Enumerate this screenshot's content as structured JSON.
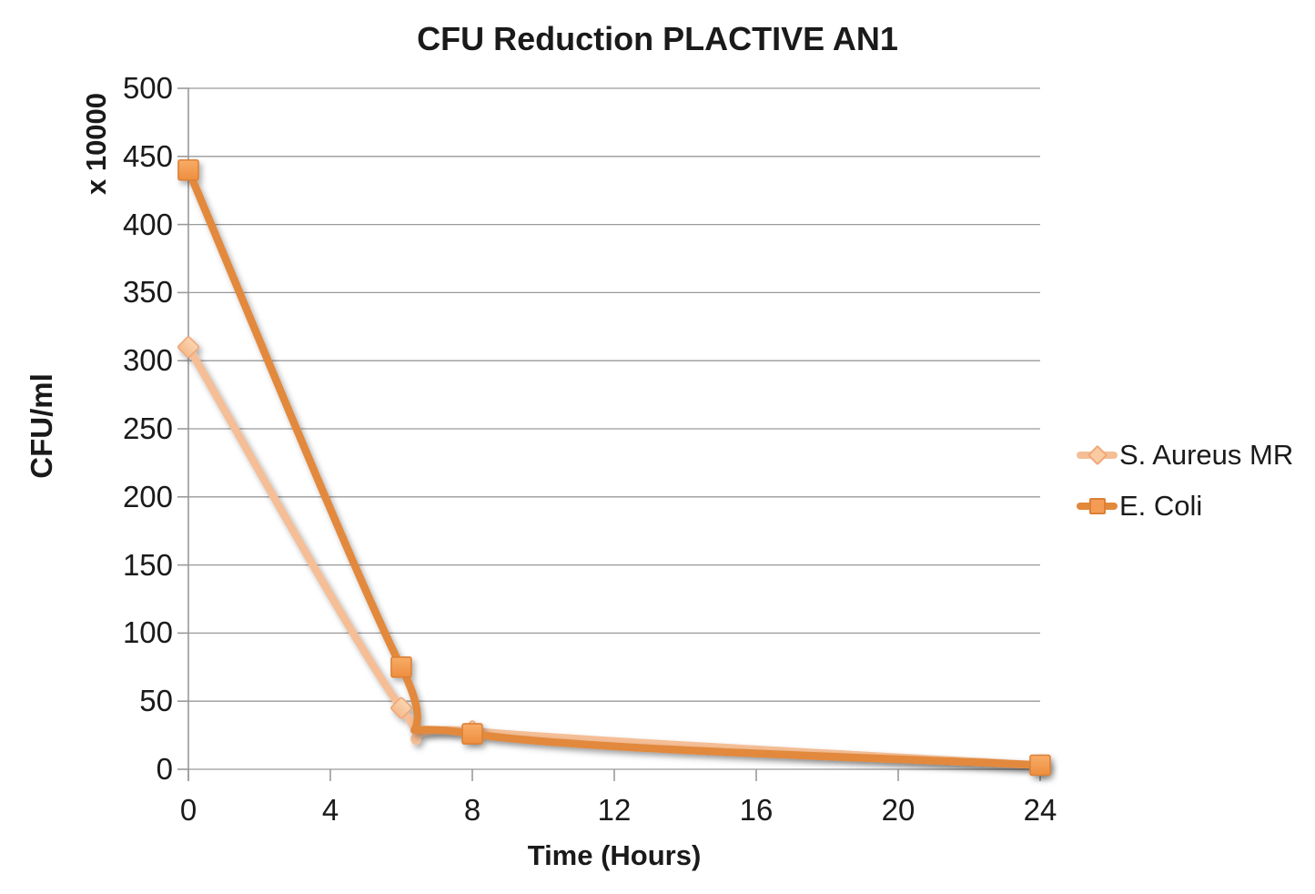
{
  "title": "CFU Reduction PLACTIVE AN1",
  "chart_data": {
    "type": "line",
    "smoothed": true,
    "title": "CFU Reduction PLACTIVE AN1",
    "xlabel": "Time (Hours)",
    "ylabel": "CFU/ml",
    "y_multiplier_label": "x 10000",
    "x": [
      0,
      6,
      8,
      24
    ],
    "series": [
      {
        "name": "S. Aureus MR",
        "values": [
          310,
          45,
          28,
          3
        ],
        "line_color": "#F5BE96",
        "marker": "diamond",
        "marker_fill": "#F9CBA3",
        "marker_stroke": "#EFA878"
      },
      {
        "name": "E. Coli",
        "values": [
          440,
          75,
          26,
          3
        ],
        "line_color": "#E2893C",
        "marker": "square",
        "marker_fill": "#F49C55",
        "marker_stroke": "#DD8036"
      }
    ],
    "x_ticks": [
      0,
      4,
      8,
      12,
      16,
      20,
      24
    ],
    "y_ticks": [
      0,
      50,
      100,
      150,
      200,
      250,
      300,
      350,
      400,
      450,
      500
    ],
    "xlim": [
      0,
      24
    ],
    "ylim": [
      0,
      500
    ],
    "grid": "horizontal",
    "legend_position": "right"
  },
  "colors": {
    "gridline": "#9A9A9A",
    "axis": "#9A9A9A",
    "text": "#1A1A1A",
    "background": "#FFFFFF"
  }
}
